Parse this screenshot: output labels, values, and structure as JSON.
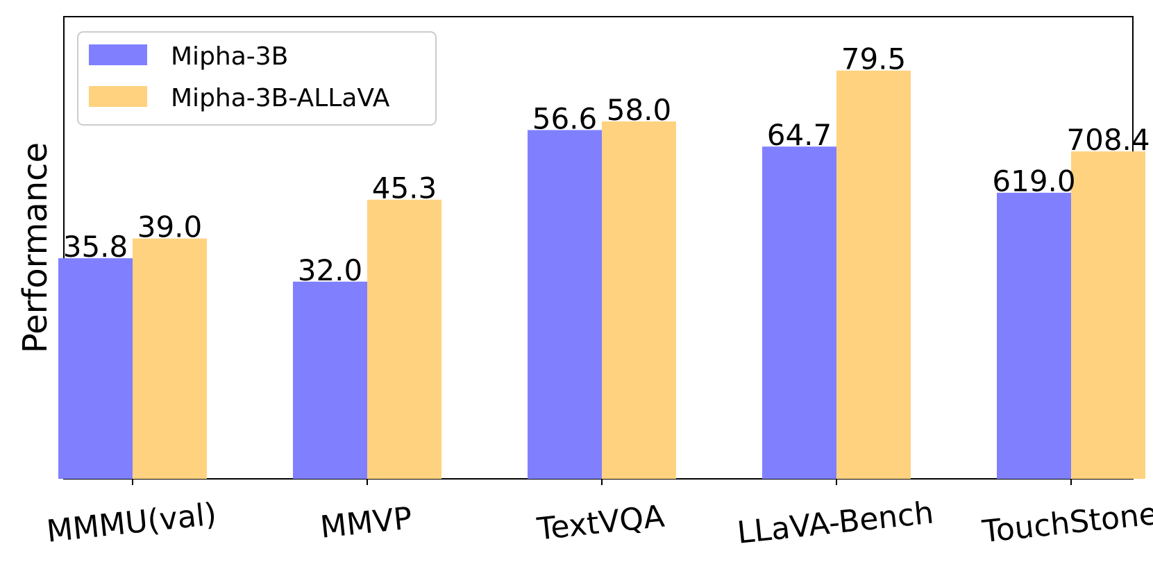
{
  "chart_data": {
    "type": "bar",
    "title": "",
    "xlabel": "",
    "ylabel": "Performance",
    "categories": [
      "MMMU(val)",
      "MMVP",
      "TextVQA",
      "LLaVA-Bench",
      "TouchStone"
    ],
    "series": [
      {
        "name": "Mipha-3B",
        "color": "#8080ff",
        "values": [
          35.8,
          32.0,
          56.6,
          64.7,
          619.0
        ],
        "labels": [
          "35.8",
          "32.0",
          "56.6",
          "64.7",
          "619.0"
        ]
      },
      {
        "name": "Mipha-3B-ALLaVA",
        "color": "#ffd280",
        "values": [
          39.0,
          45.3,
          58.0,
          79.5,
          708.4
        ],
        "labels": [
          "39.0",
          "45.3",
          "58.0",
          "79.5",
          "708.4"
        ]
      }
    ],
    "per_category_scale_max": [
      75,
      75,
      75,
      90,
      1000
    ],
    "legend_position": "upper-left",
    "y_ticks_visible": false,
    "grid": false
  }
}
